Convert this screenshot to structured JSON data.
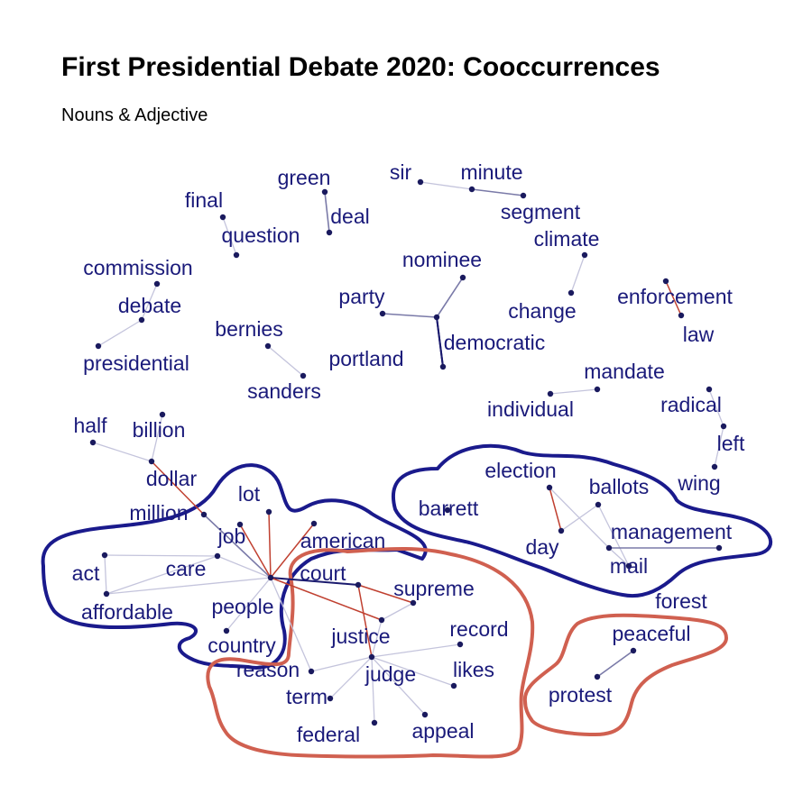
{
  "title": "First Presidential Debate 2020: Cooccurrences",
  "subtitle": "Nouns & Adjective",
  "colors": {
    "label": "#1a1a7a",
    "node": "#1a1a5e",
    "edge_weak": "#c4c4dc",
    "edge_mid": "#7a7aa8",
    "edge_strong": "#1a1a6e",
    "edge_red": "#c04030",
    "hull_blue": "#1a1a8c",
    "hull_red": "#d06050"
  },
  "nodes": [
    {
      "id": "green",
      "label": "green"
    },
    {
      "id": "deal",
      "label": "deal"
    },
    {
      "id": "sir",
      "label": "sir"
    },
    {
      "id": "minute",
      "label": "minute"
    },
    {
      "id": "segment",
      "label": "segment"
    },
    {
      "id": "final",
      "label": "final"
    },
    {
      "id": "question",
      "label": "question"
    },
    {
      "id": "climate",
      "label": "climate"
    },
    {
      "id": "change",
      "label": "change"
    },
    {
      "id": "nominee",
      "label": "nominee"
    },
    {
      "id": "commission",
      "label": "commission"
    },
    {
      "id": "party",
      "label": "party"
    },
    {
      "id": "democratic",
      "label": "democratic"
    },
    {
      "id": "portland",
      "label": "portland"
    },
    {
      "id": "enforcement",
      "label": "enforcement"
    },
    {
      "id": "law",
      "label": "law"
    },
    {
      "id": "debate",
      "label": "debate"
    },
    {
      "id": "presidential",
      "label": "presidential"
    },
    {
      "id": "bernies",
      "label": "bernies"
    },
    {
      "id": "sanders",
      "label": "sanders"
    },
    {
      "id": "mandate",
      "label": "mandate"
    },
    {
      "id": "individual",
      "label": "individual"
    },
    {
      "id": "radical",
      "label": "radical"
    },
    {
      "id": "left",
      "label": "left"
    },
    {
      "id": "wing",
      "label": "wing"
    },
    {
      "id": "half",
      "label": "half"
    },
    {
      "id": "billion",
      "label": "billion"
    },
    {
      "id": "dollar",
      "label": "dollar"
    },
    {
      "id": "million",
      "label": "million"
    },
    {
      "id": "lot",
      "label": "lot"
    },
    {
      "id": "job",
      "label": "job"
    },
    {
      "id": "american",
      "label": "american"
    },
    {
      "id": "act",
      "label": "act"
    },
    {
      "id": "care",
      "label": "care"
    },
    {
      "id": "affordable",
      "label": "affordable"
    },
    {
      "id": "people",
      "label": "people"
    },
    {
      "id": "country",
      "label": "country"
    },
    {
      "id": "election",
      "label": "election"
    },
    {
      "id": "ballots",
      "label": "ballots"
    },
    {
      "id": "barrett",
      "label": "barrett"
    },
    {
      "id": "day",
      "label": "day"
    },
    {
      "id": "management",
      "label": "management"
    },
    {
      "id": "mail",
      "label": "mail"
    },
    {
      "id": "forest",
      "label": "forest"
    },
    {
      "id": "court",
      "label": "court"
    },
    {
      "id": "supreme",
      "label": "supreme"
    },
    {
      "id": "justice",
      "label": "justice"
    },
    {
      "id": "record",
      "label": "record"
    },
    {
      "id": "reason",
      "label": "reason"
    },
    {
      "id": "judge",
      "label": "judge"
    },
    {
      "id": "likes",
      "label": "likes"
    },
    {
      "id": "term",
      "label": "term"
    },
    {
      "id": "federal",
      "label": "federal"
    },
    {
      "id": "appeal",
      "label": "appeal"
    },
    {
      "id": "peaceful",
      "label": "peaceful"
    },
    {
      "id": "protest",
      "label": "protest"
    }
  ],
  "edges": [
    {
      "from": "green",
      "to": "deal",
      "strength": "mid"
    },
    {
      "from": "sir",
      "to": "minute",
      "strength": "weak"
    },
    {
      "from": "minute",
      "to": "segment",
      "strength": "mid"
    },
    {
      "from": "final",
      "to": "question",
      "strength": "weak"
    },
    {
      "from": "climate",
      "to": "change",
      "strength": "weak"
    },
    {
      "from": "nominee",
      "to": "democratic",
      "strength": "mid"
    },
    {
      "from": "party",
      "to": "democratic",
      "strength": "mid"
    },
    {
      "from": "democratic",
      "to": "portland",
      "strength": "strong"
    },
    {
      "from": "portland",
      "to": "democratic",
      "strength": "strong"
    },
    {
      "from": "enforcement",
      "to": "law",
      "strength": "red"
    },
    {
      "from": "commission",
      "to": "debate",
      "strength": "weak"
    },
    {
      "from": "debate",
      "to": "presidential",
      "strength": "weak"
    },
    {
      "from": "bernies",
      "to": "sanders",
      "strength": "weak"
    },
    {
      "from": "mandate",
      "to": "individual",
      "strength": "weak"
    },
    {
      "from": "radical",
      "to": "left",
      "strength": "weak"
    },
    {
      "from": "left",
      "to": "wing",
      "strength": "weak"
    },
    {
      "from": "half",
      "to": "dollar",
      "strength": "weak"
    },
    {
      "from": "billion",
      "to": "dollar",
      "strength": "weak"
    },
    {
      "from": "dollar",
      "to": "million",
      "strength": "red"
    },
    {
      "from": "million",
      "to": "people",
      "strength": "mid"
    },
    {
      "from": "lot",
      "to": "people",
      "strength": "red"
    },
    {
      "from": "job",
      "to": "people",
      "strength": "red"
    },
    {
      "from": "american",
      "to": "people",
      "strength": "red"
    },
    {
      "from": "act",
      "to": "care",
      "strength": "weak"
    },
    {
      "from": "care",
      "to": "affordable",
      "strength": "weak"
    },
    {
      "from": "affordable",
      "to": "act",
      "strength": "weak"
    },
    {
      "from": "care",
      "to": "people",
      "strength": "weak"
    },
    {
      "from": "affordable",
      "to": "people",
      "strength": "weak"
    },
    {
      "from": "people",
      "to": "country",
      "strength": "weak"
    },
    {
      "from": "people",
      "to": "court",
      "strength": "strong"
    },
    {
      "from": "people",
      "to": "justice",
      "strength": "red"
    },
    {
      "from": "people",
      "to": "reason",
      "strength": "weak"
    },
    {
      "from": "election",
      "to": "day",
      "strength": "red"
    },
    {
      "from": "ballots",
      "to": "day",
      "strength": "weak"
    },
    {
      "from": "election",
      "to": "management",
      "strength": "weak"
    },
    {
      "from": "management",
      "to": "mail",
      "strength": "weak"
    },
    {
      "from": "ballots",
      "to": "mail",
      "strength": "weak"
    },
    {
      "from": "management",
      "to": "forest",
      "strength": "mid"
    },
    {
      "from": "court",
      "to": "supreme",
      "strength": "red"
    },
    {
      "from": "court",
      "to": "judge",
      "strength": "red"
    },
    {
      "from": "supreme",
      "to": "justice",
      "strength": "weak"
    },
    {
      "from": "justice",
      "to": "judge",
      "strength": "weak"
    },
    {
      "from": "judge",
      "to": "record",
      "strength": "weak"
    },
    {
      "from": "judge",
      "to": "likes",
      "strength": "weak"
    },
    {
      "from": "judge",
      "to": "term",
      "strength": "weak"
    },
    {
      "from": "judge",
      "to": "federal",
      "strength": "weak"
    },
    {
      "from": "judge",
      "to": "appeal",
      "strength": "weak"
    },
    {
      "from": "judge",
      "to": "reason",
      "strength": "weak"
    },
    {
      "from": "peaceful",
      "to": "protest",
      "strength": "mid"
    }
  ]
}
